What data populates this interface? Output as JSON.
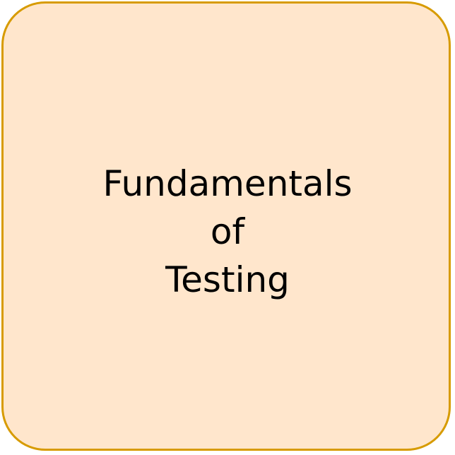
{
  "shape": {
    "fill_color": "#ffe6cc",
    "stroke_color": "#d79b00",
    "lines": [
      "Fundamentals",
      "of",
      "Testing"
    ]
  }
}
